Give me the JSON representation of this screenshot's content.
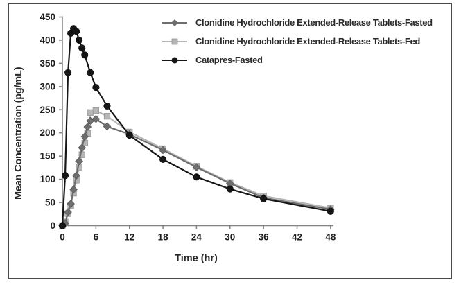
{
  "figure": {
    "ylabel": "Mean Concentration (pg/mL)",
    "xlabel": "Time (hr)"
  },
  "chart_data": {
    "type": "line",
    "title": "",
    "xlabel": "Time (hr)",
    "ylabel": "Mean Concentration (pg/mL)",
    "xlim": [
      0,
      48
    ],
    "ylim": [
      0,
      450
    ],
    "x_ticks": [
      0,
      6,
      12,
      18,
      24,
      30,
      36,
      42,
      48
    ],
    "y_ticks": [
      0,
      50,
      100,
      150,
      200,
      250,
      300,
      350,
      400,
      450
    ],
    "grid": false,
    "legend_position": "top-center",
    "series": [
      {
        "name": "Clonidine Hydrochloride Extended-Release Tablets-Fasted",
        "marker": "diamond",
        "color": "#6e6e6e",
        "x": [
          0,
          0.5,
          1,
          1.5,
          2,
          2.5,
          3,
          3.5,
          4,
          4.5,
          5,
          6,
          8,
          12,
          18,
          24,
          30,
          36,
          48
        ],
        "y": [
          0,
          5,
          29,
          47,
          78,
          108,
          139,
          168,
          192,
          213,
          226,
          230,
          214,
          197,
          163,
          126,
          91,
          60,
          35
        ]
      },
      {
        "name": "Clonidine Hydrochloride Extended-Release Tablets-Fed",
        "marker": "square",
        "color": "#b6b6b6",
        "x": [
          0,
          0.5,
          1,
          1.5,
          2,
          2.5,
          3,
          3.5,
          4,
          4.5,
          5,
          6,
          8,
          12,
          18,
          24,
          30,
          36,
          48
        ],
        "y": [
          0,
          8,
          26,
          43,
          70,
          98,
          126,
          153,
          178,
          199,
          244,
          248,
          236,
          202,
          166,
          128,
          93,
          64,
          38
        ]
      },
      {
        "name": "Catapres-Fasted",
        "marker": "circle",
        "color": "#161616",
        "x": [
          0,
          0.5,
          1,
          1.5,
          2,
          2.5,
          3,
          3.5,
          4,
          5,
          6,
          8,
          12,
          18,
          24,
          30,
          36,
          48
        ],
        "y": [
          0,
          108,
          330,
          415,
          425,
          419,
          400,
          383,
          368,
          330,
          298,
          258,
          195,
          143,
          105,
          79,
          58,
          31
        ]
      }
    ]
  }
}
